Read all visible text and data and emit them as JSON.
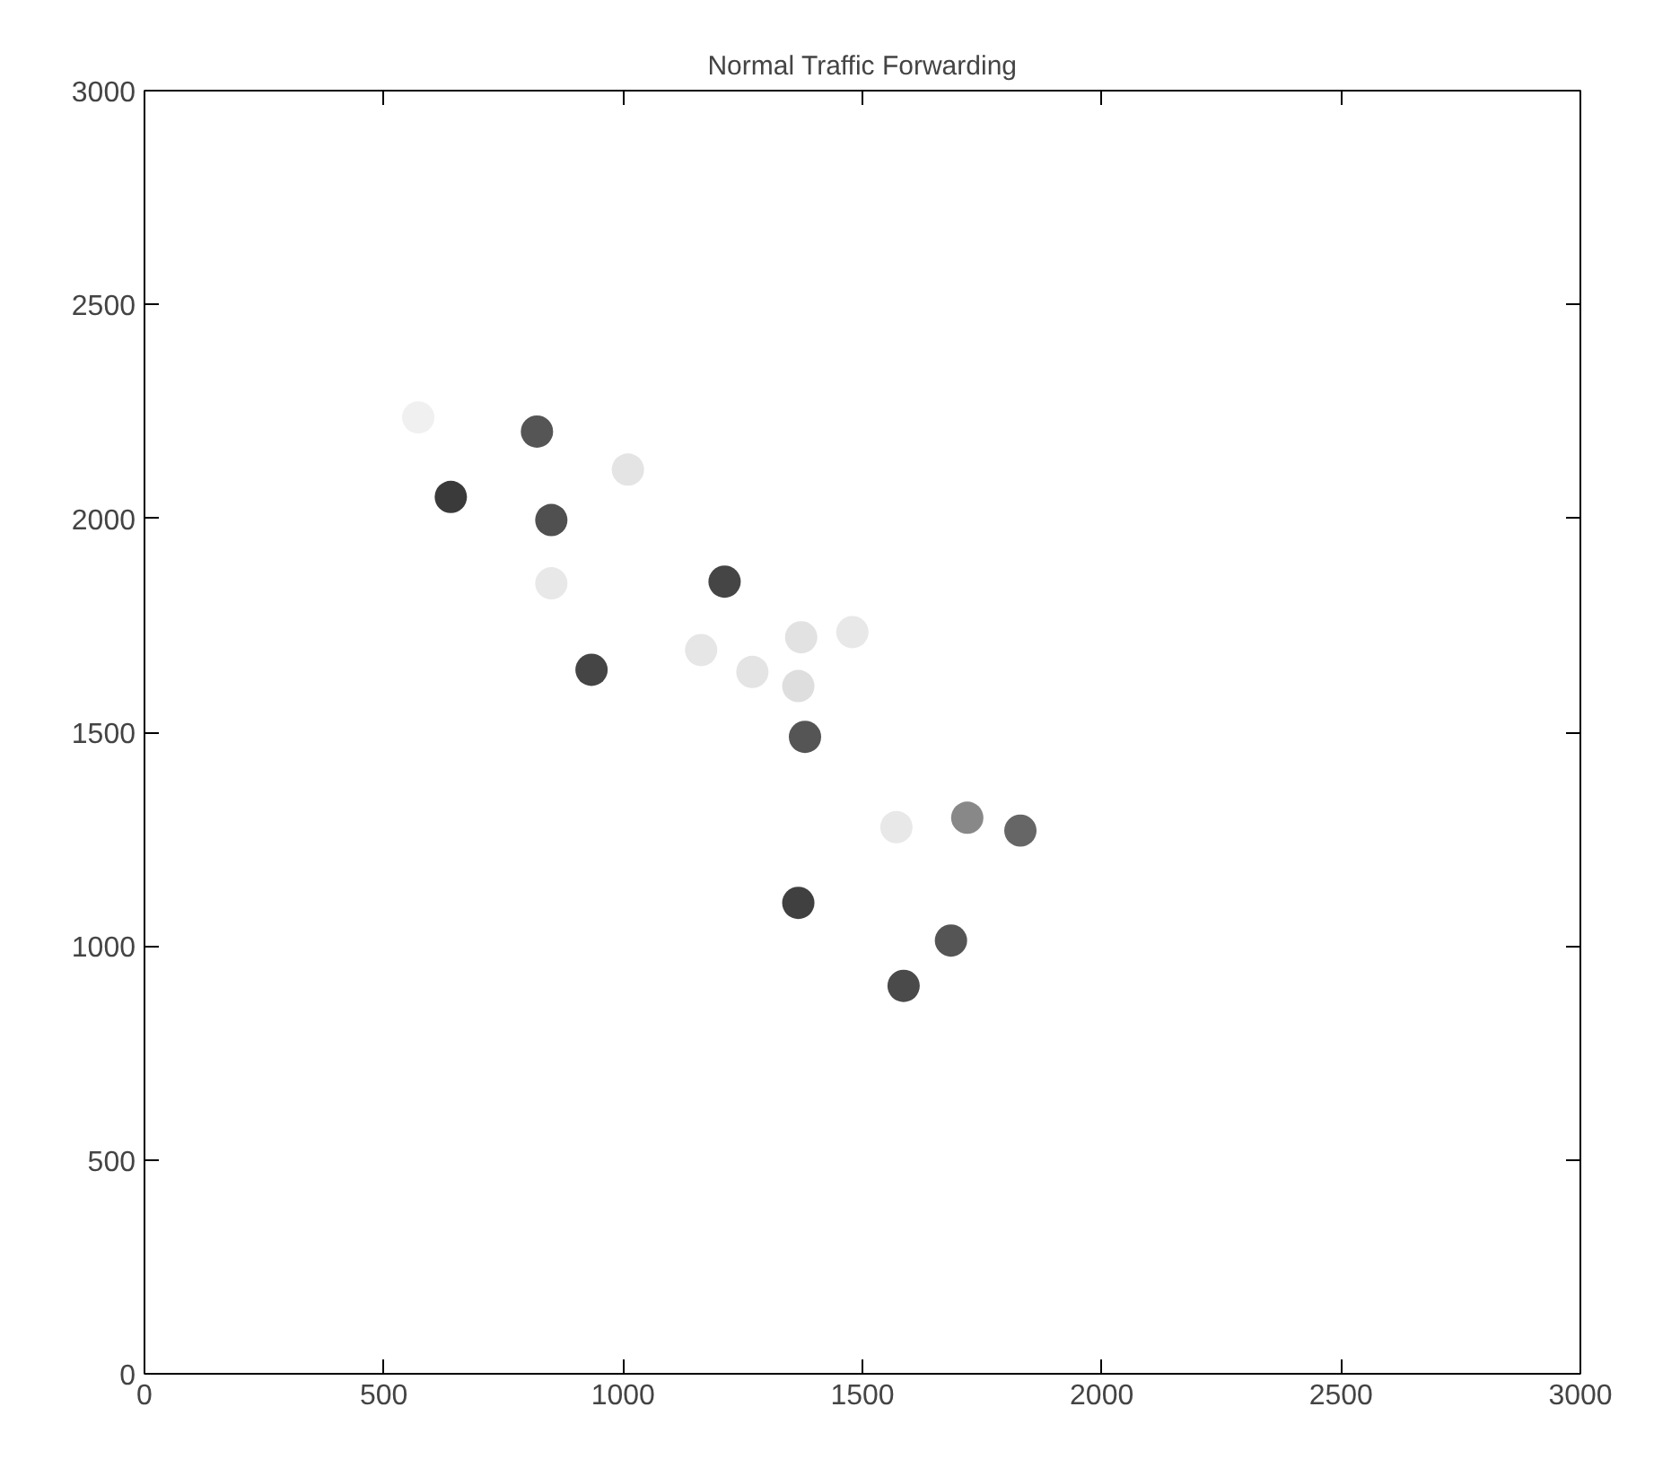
{
  "chart_data": {
    "type": "scatter",
    "title": "Normal Traffic Forwarding",
    "x": [
      640,
      820,
      850,
      1212,
      934,
      1380,
      1366,
      1685,
      1586,
      1719,
      1830,
      1010,
      850,
      1163,
      1372,
      1479,
      1366,
      1270,
      572,
      1571
    ],
    "values": [
      2050,
      2203,
      1996,
      1852,
      1646,
      1489,
      1101,
      1013,
      907,
      1300,
      1270,
      2114,
      1848,
      1692,
      1722,
      1734,
      1608,
      1641,
      2236,
      1278
    ],
    "colors": [
      "#3a3a3a",
      "#555555",
      "#505050",
      "#454545",
      "#454545",
      "#555555",
      "#404040",
      "#555555",
      "#4a4a4a",
      "#888888",
      "#666666",
      "#e4e4e4",
      "#e8e8e8",
      "#e6e6e6",
      "#e2e2e2",
      "#e8e8e8",
      "#dedede",
      "#e4e4e4",
      "#f0f0f0",
      "#e8e8e8"
    ],
    "marker": "circle",
    "xlim": [
      0,
      3000
    ],
    "ylim": [
      0,
      3000
    ],
    "xticks": [
      0,
      500,
      1000,
      1500,
      2000,
      2500,
      3000
    ],
    "yticks": [
      0,
      500,
      1000,
      1500,
      2000,
      2500,
      3000
    ],
    "grid": false
  }
}
